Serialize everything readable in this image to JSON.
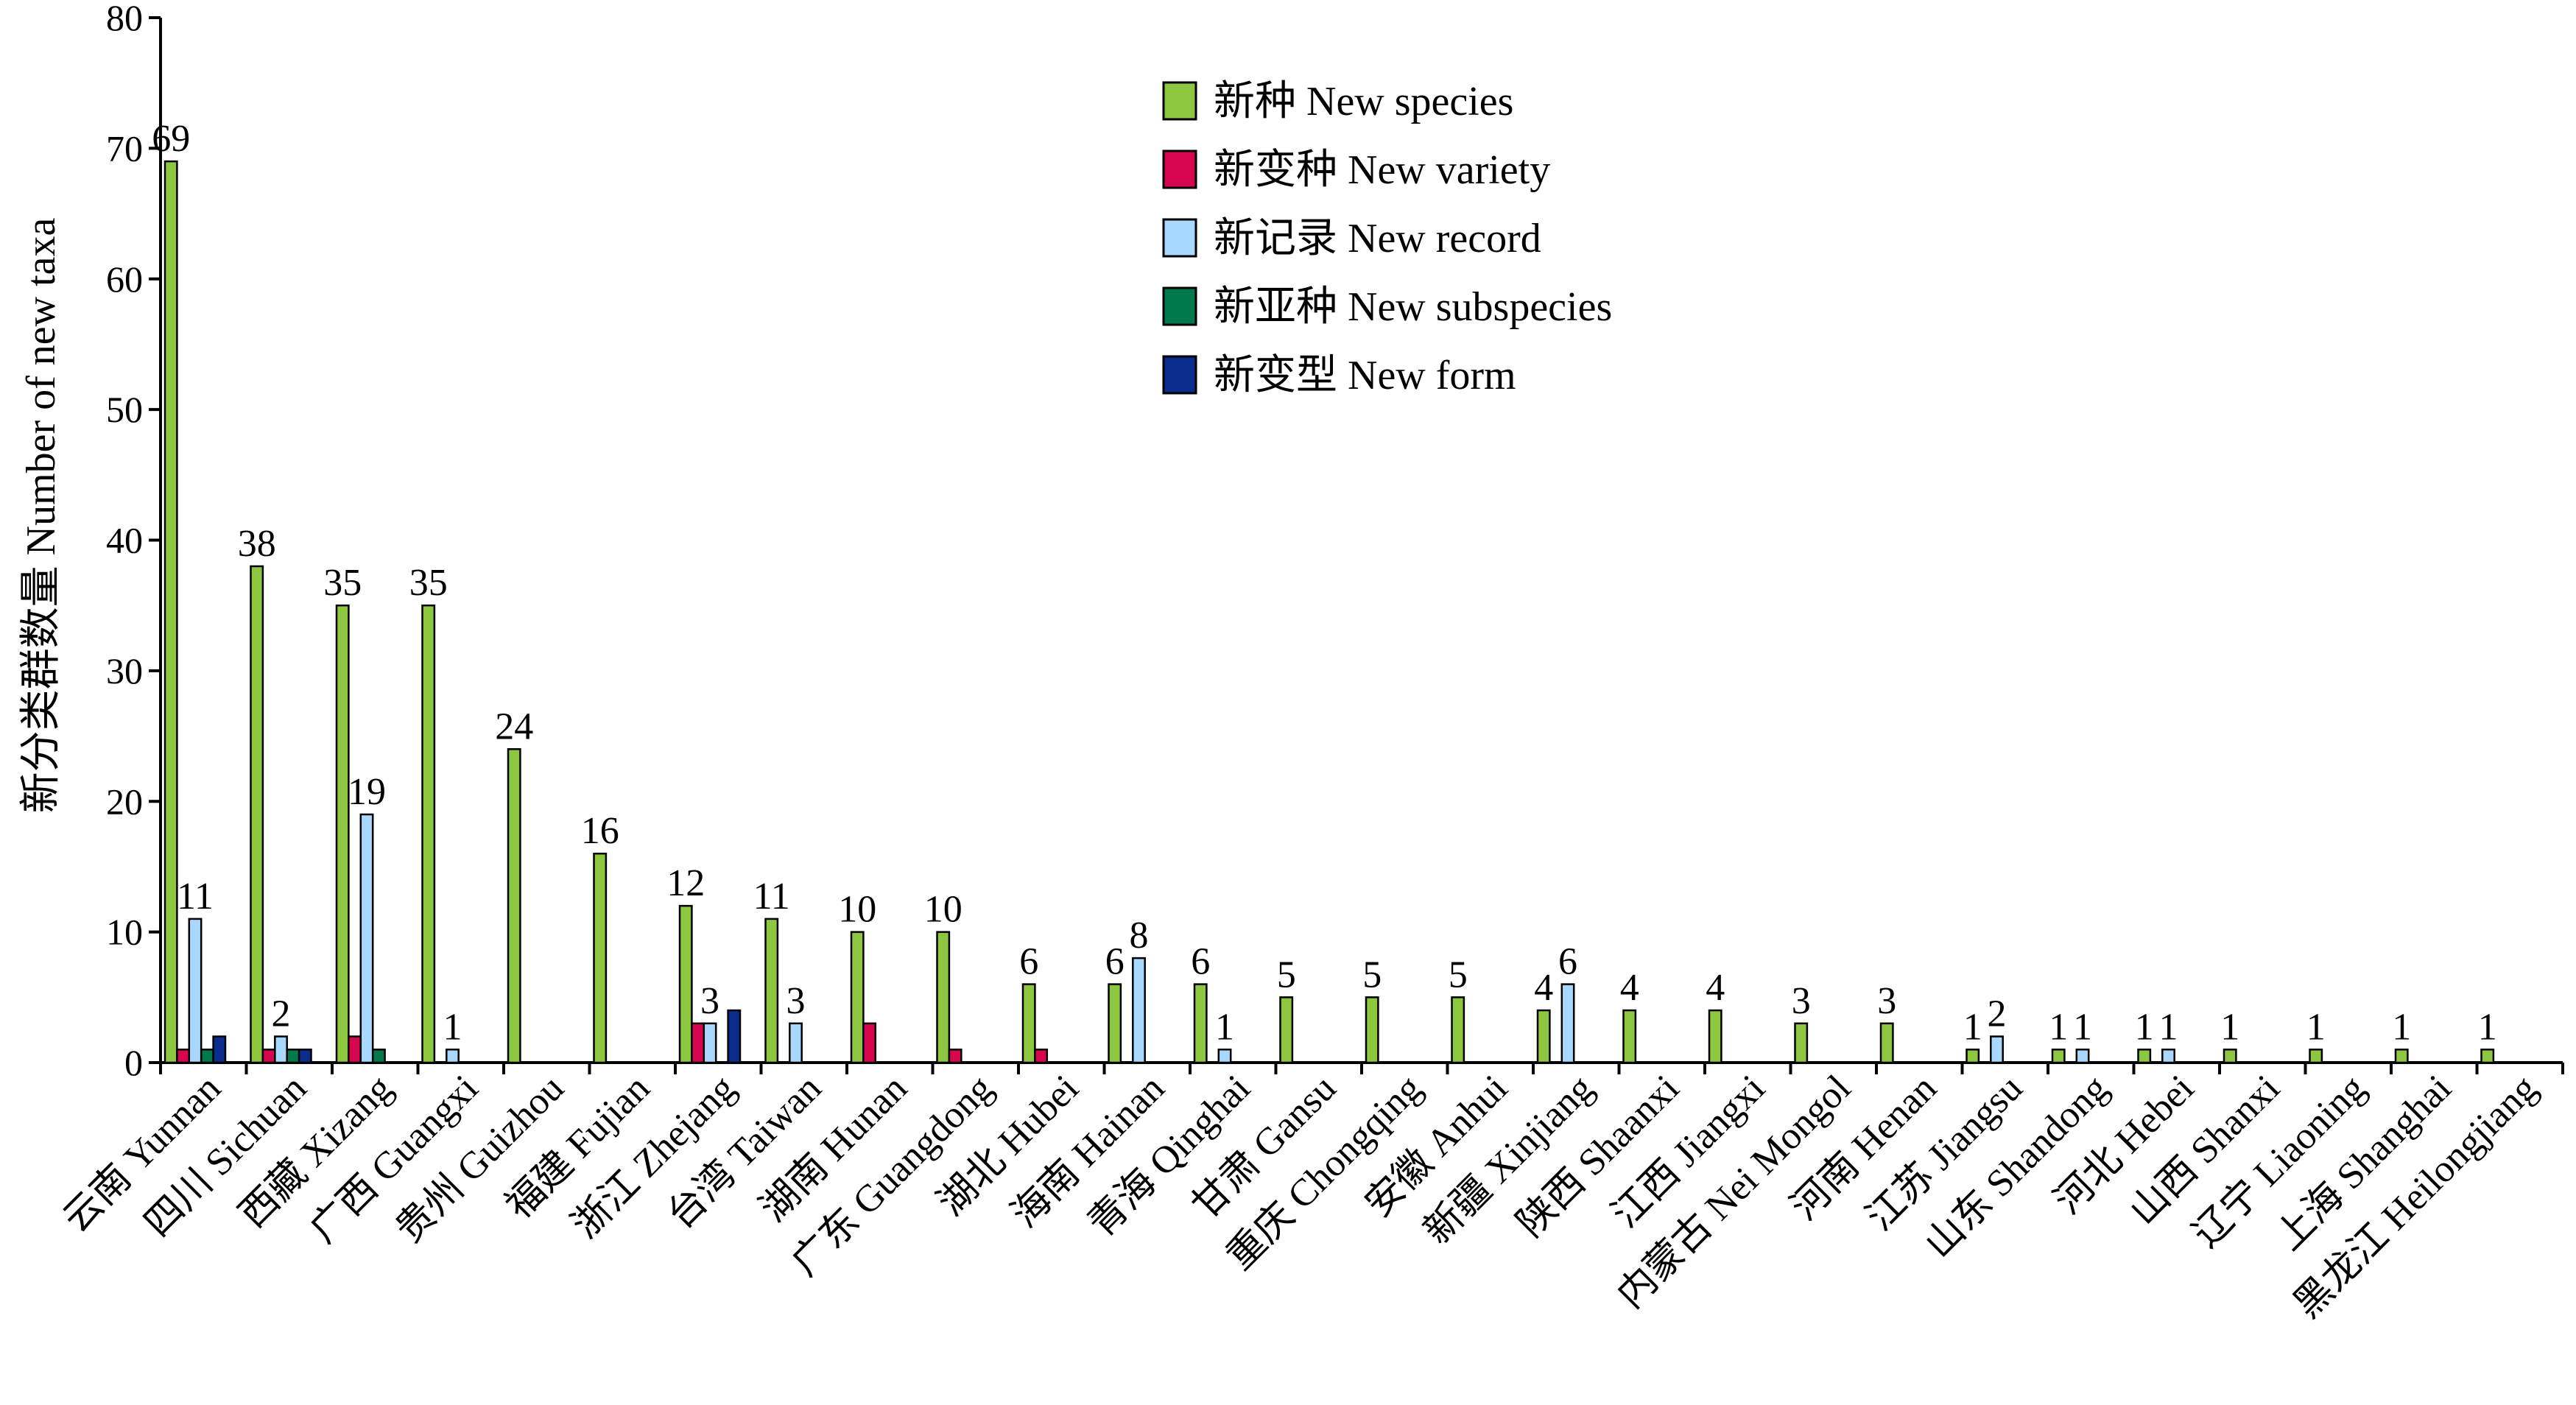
{
  "chart_data": {
    "type": "bar",
    "title": "",
    "xlabel": "",
    "ylabel": "新分类群数量 Number of new taxa",
    "ylim": [
      0,
      80
    ],
    "yticks": [
      0,
      10,
      20,
      30,
      40,
      50,
      60,
      70,
      80
    ],
    "grid": false,
    "legend_position": "top-center",
    "categories": [
      "云南 Yunnan",
      "四川 Sichuan",
      "西藏 Xizang",
      "广西 Guangxi",
      "贵州 Guizhou",
      "福建 Fujian",
      "浙江 Zhejang",
      "台湾 Taiwan",
      "湖南 Hunan",
      "广东 Guangdong",
      "湖北 Hubei",
      "海南 Hainan",
      "青海 Qinghai",
      "甘肃 Gansu",
      "重庆 Chongqing",
      "安徽 Anhui",
      "新疆 Xinjiang",
      "陕西 Shaanxi",
      "江西 Jiangxi",
      "内蒙古 Nei Mongol",
      "河南 Henan",
      "江苏 Jiangsu",
      "山东 Shandong",
      "河北 Hebei",
      "山西 Shanxi",
      "辽宁 Liaoning",
      "上海 Shanghai",
      "黑龙江 Heilongjiang"
    ],
    "series": [
      {
        "name": "新种 New species",
        "color": "#8dc63f",
        "values": [
          69,
          38,
          35,
          35,
          24,
          16,
          12,
          11,
          10,
          10,
          6,
          6,
          6,
          5,
          5,
          5,
          4,
          4,
          4,
          3,
          3,
          1,
          1,
          1,
          1,
          1,
          1,
          1
        ]
      },
      {
        "name": "新变种 New variety",
        "color": "#d7064f",
        "values": [
          1,
          1,
          2,
          0,
          0,
          0,
          3,
          0,
          3,
          1,
          1,
          0,
          0,
          0,
          0,
          0,
          0,
          0,
          0,
          0,
          0,
          0,
          0,
          0,
          0,
          0,
          0,
          0
        ]
      },
      {
        "name": "新记录 New record",
        "color": "#a9d8ff",
        "values": [
          11,
          2,
          19,
          1,
          0,
          0,
          3,
          3,
          0,
          0,
          0,
          8,
          1,
          0,
          0,
          0,
          6,
          0,
          0,
          0,
          0,
          2,
          1,
          1,
          0,
          0,
          0,
          0
        ]
      },
      {
        "name": "新亚种 New subspecies",
        "color": "#007a4d",
        "values": [
          1,
          1,
          1,
          0,
          0,
          0,
          0,
          0,
          0,
          0,
          0,
          0,
          0,
          0,
          0,
          0,
          0,
          0,
          0,
          0,
          0,
          0,
          0,
          0,
          0,
          0,
          0,
          0
        ]
      },
      {
        "name": "新变型 New form",
        "color": "#0a2c8c",
        "values": [
          2,
          1,
          0,
          0,
          0,
          0,
          4,
          0,
          0,
          0,
          0,
          0,
          0,
          0,
          0,
          0,
          0,
          0,
          0,
          0,
          0,
          0,
          0,
          0,
          0,
          0,
          0,
          0
        ]
      }
    ],
    "data_labels": [
      {
        "category": 0,
        "series": 0,
        "text": "69"
      },
      {
        "category": 0,
        "series": 2,
        "text": "11"
      },
      {
        "category": 1,
        "series": 0,
        "text": "38"
      },
      {
        "category": 1,
        "series": 2,
        "text": "2"
      },
      {
        "category": 2,
        "series": 0,
        "text": "35"
      },
      {
        "category": 2,
        "series": 2,
        "text": "19"
      },
      {
        "category": 3,
        "series": 0,
        "text": "35"
      },
      {
        "category": 3,
        "series": 2,
        "text": "1"
      },
      {
        "category": 4,
        "series": 0,
        "text": "24"
      },
      {
        "category": 5,
        "series": 0,
        "text": "16"
      },
      {
        "category": 6,
        "series": 0,
        "text": "12"
      },
      {
        "category": 6,
        "series": 2,
        "text": "3"
      },
      {
        "category": 7,
        "series": 0,
        "text": "11"
      },
      {
        "category": 7,
        "series": 2,
        "text": "3"
      },
      {
        "category": 8,
        "series": 0,
        "text": "10"
      },
      {
        "category": 9,
        "series": 0,
        "text": "10"
      },
      {
        "category": 10,
        "series": 0,
        "text": "6"
      },
      {
        "category": 11,
        "series": 0,
        "text": "6"
      },
      {
        "category": 11,
        "series": 2,
        "text": "8"
      },
      {
        "category": 12,
        "series": 0,
        "text": "6"
      },
      {
        "category": 12,
        "series": 2,
        "text": "1"
      },
      {
        "category": 13,
        "series": 0,
        "text": "5"
      },
      {
        "category": 14,
        "series": 0,
        "text": "5"
      },
      {
        "category": 15,
        "series": 0,
        "text": "5"
      },
      {
        "category": 16,
        "series": 0,
        "text": "4"
      },
      {
        "category": 16,
        "series": 2,
        "text": "6"
      },
      {
        "category": 17,
        "series": 0,
        "text": "4"
      },
      {
        "category": 18,
        "series": 0,
        "text": "4"
      },
      {
        "category": 19,
        "series": 0,
        "text": "3"
      },
      {
        "category": 20,
        "series": 0,
        "text": "3"
      },
      {
        "category": 21,
        "series": 0,
        "text": "1"
      },
      {
        "category": 21,
        "series": 2,
        "text": "2"
      },
      {
        "category": 22,
        "series": 0,
        "text": "1"
      },
      {
        "category": 22,
        "series": 2,
        "text": "1"
      },
      {
        "category": 23,
        "series": 0,
        "text": "1"
      },
      {
        "category": 23,
        "series": 2,
        "text": "1"
      },
      {
        "category": 24,
        "series": 0,
        "text": "1"
      },
      {
        "category": 25,
        "series": 0,
        "text": "1"
      },
      {
        "category": 26,
        "series": 0,
        "text": "1"
      },
      {
        "category": 27,
        "series": 0,
        "text": "1"
      }
    ]
  }
}
